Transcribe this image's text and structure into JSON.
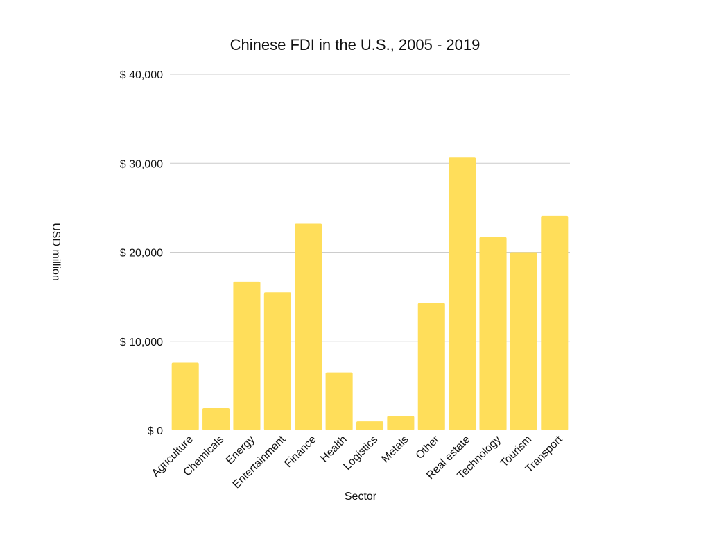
{
  "chart_data": {
    "type": "bar",
    "title": "Chinese FDI in the U.S., 2005 - 2019",
    "xlabel": "Sector",
    "ylabel": "USD million",
    "categories": [
      "Agriculture",
      "Chemicals",
      "Energy",
      "Entertainment",
      "Finance",
      "Health",
      "Logistics",
      "Metals",
      "Other",
      "Real estate",
      "Technology",
      "Tourism",
      "Transport"
    ],
    "values": [
      7600,
      2500,
      16700,
      15500,
      23200,
      6500,
      1000,
      1600,
      14300,
      30700,
      21700,
      20000,
      24100
    ],
    "ylim": [
      0,
      40000
    ],
    "yticks": [
      0,
      10000,
      20000,
      30000,
      40000
    ],
    "ytick_labels": [
      "$ 0",
      "$ 10,000",
      "$ 20,000",
      "$ 30,000",
      "$ 40,000"
    ],
    "bar_color": "#FFDE5A",
    "grid": true,
    "legend": "none"
  }
}
